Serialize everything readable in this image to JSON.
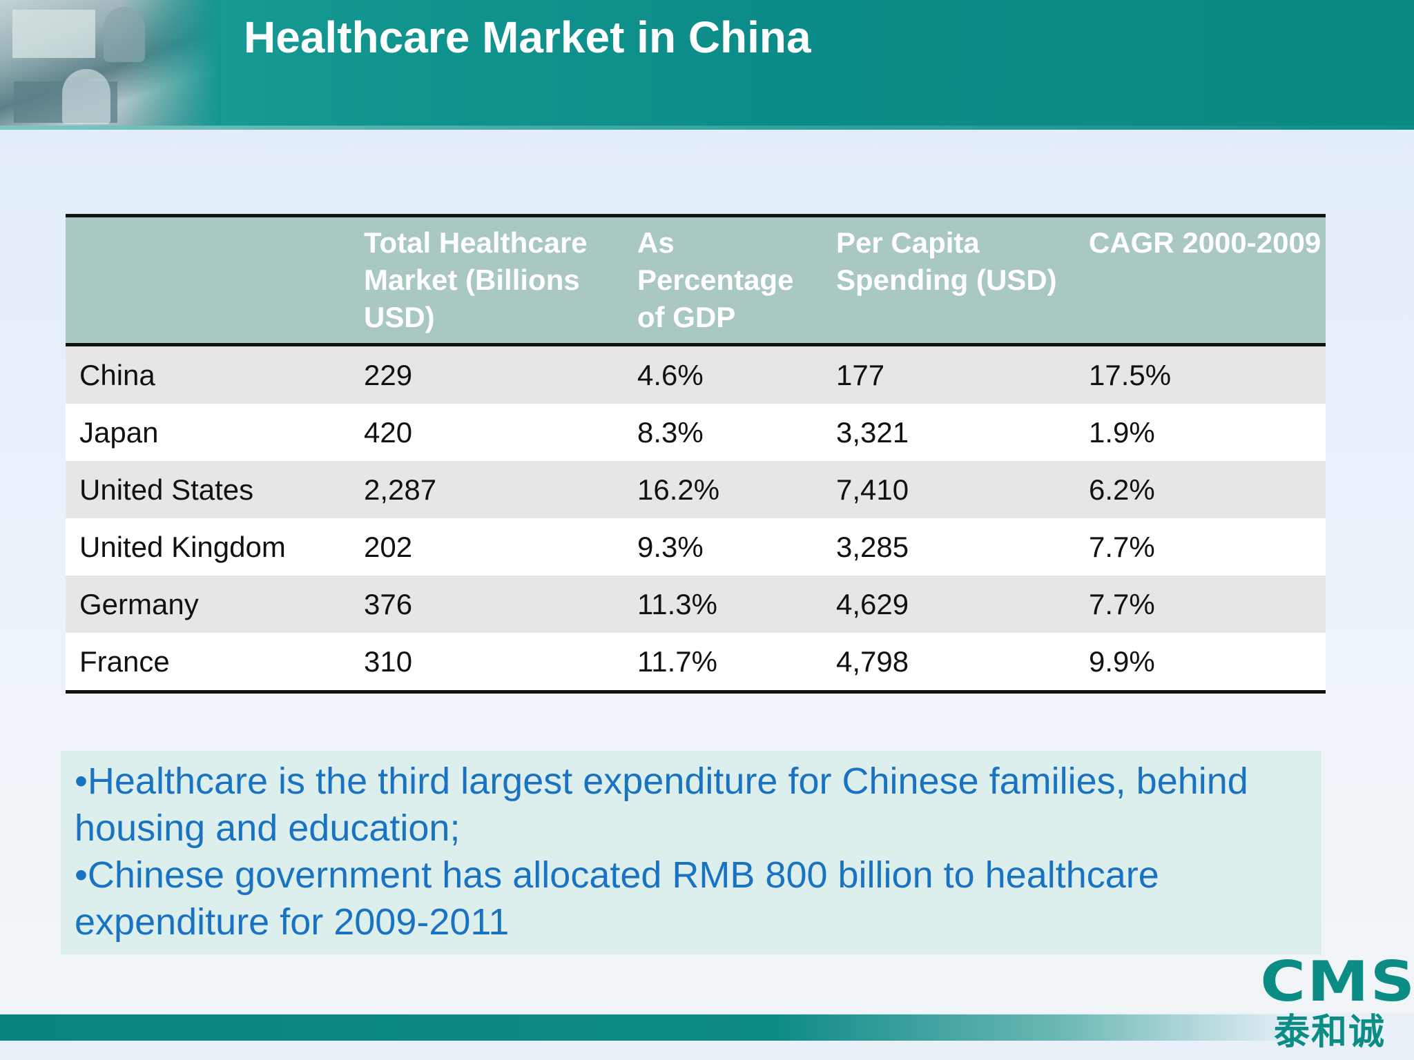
{
  "slide": {
    "title": "Healthcare Market in China"
  },
  "table": {
    "headers": [
      "",
      "Total Healthcare Market (Billions USD)",
      "As Percentage of GDP",
      "Per Capita Spending (USD)",
      "CAGR 2000-2009"
    ],
    "rows": [
      [
        "China",
        "229",
        "4.6%",
        "177",
        "17.5%"
      ],
      [
        "Japan",
        "420",
        "8.3%",
        "3,321",
        "1.9%"
      ],
      [
        "United States",
        "2,287",
        "16.2%",
        "7,410",
        "6.2%"
      ],
      [
        "United Kingdom",
        "202",
        "9.3%",
        "3,285",
        "7.7%"
      ],
      [
        "Germany",
        "376",
        "11.3%",
        "4,629",
        "7.7%"
      ],
      [
        "France",
        "310",
        "11.7%",
        "4,798",
        "9.9%"
      ]
    ]
  },
  "notes": [
    "•Healthcare is the third largest expenditure for Chinese families, behind housing and education;",
    "•Chinese government has allocated RMB 800 billion to healthcare expenditure for 2009-2011"
  ],
  "logo": {
    "latin": "CMS",
    "cjk": "泰和诚"
  },
  "colors": {
    "header": "#0c8c88",
    "table_header": "#a9c8c4",
    "row_shade": "#e6e6e6",
    "notes_text": "#1a73c2",
    "notes_bg": "#dcefed",
    "logo": "#0b8d86"
  }
}
